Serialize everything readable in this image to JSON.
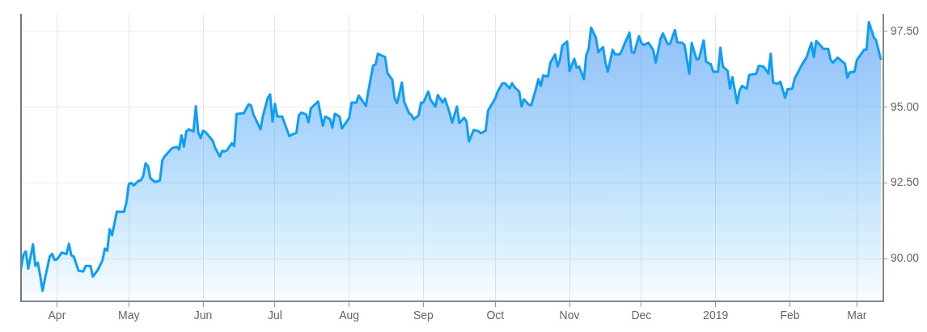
{
  "chart_data": {
    "type": "area",
    "color": "#0f9ef5",
    "grid": true,
    "xlim": [
      "2018-03-17",
      "2019-03-12"
    ],
    "xticks": [
      {
        "value": "2018-04-01",
        "label": "Apr"
      },
      {
        "value": "2018-05-01",
        "label": "May"
      },
      {
        "value": "2018-06-01",
        "label": "Jun"
      },
      {
        "value": "2018-07-01",
        "label": "Jul"
      },
      {
        "value": "2018-08-01",
        "label": "Aug"
      },
      {
        "value": "2018-09-01",
        "label": "Sep"
      },
      {
        "value": "2018-10-01",
        "label": "Oct"
      },
      {
        "value": "2018-11-01",
        "label": "Nov"
      },
      {
        "value": "2018-12-01",
        "label": "Dec"
      },
      {
        "value": "2019-01-01",
        "label": "2019"
      },
      {
        "value": "2019-02-01",
        "label": "Feb"
      },
      {
        "value": "2019-03-01",
        "label": "Mar"
      }
    ],
    "ylim": [
      88.6,
      98.05
    ],
    "yticks": [
      {
        "value": 90,
        "label": "90.00"
      },
      {
        "value": 92.5,
        "label": "92.50"
      },
      {
        "value": 95,
        "label": "95.00"
      },
      {
        "value": 97.5,
        "label": "97.50"
      }
    ],
    "x": [
      "2018-03-17",
      "2018-03-18",
      "2018-03-19",
      "2018-03-20",
      "2018-03-22",
      "2018-03-23",
      "2018-03-24",
      "2018-03-25",
      "2018-03-26",
      "2018-03-27",
      "2018-03-29",
      "2018-03-30",
      "2018-03-31",
      "2018-04-01",
      "2018-04-02",
      "2018-04-03",
      "2018-04-05",
      "2018-04-06",
      "2018-04-07",
      "2018-04-08",
      "2018-04-10",
      "2018-04-12",
      "2018-04-13",
      "2018-04-15",
      "2018-04-16",
      "2018-04-18",
      "2018-04-20",
      "2018-04-21",
      "2018-04-22",
      "2018-04-23",
      "2018-04-24",
      "2018-04-26",
      "2018-04-29",
      "2018-04-30",
      "2018-05-01",
      "2018-05-02",
      "2018-05-03",
      "2018-05-05",
      "2018-05-06",
      "2018-05-07",
      "2018-05-08",
      "2018-05-09",
      "2018-05-10",
      "2018-05-12",
      "2018-05-14",
      "2018-05-15",
      "2018-05-16",
      "2018-05-17",
      "2018-05-19",
      "2018-05-21",
      "2018-05-22",
      "2018-05-23",
      "2018-05-24",
      "2018-05-25",
      "2018-05-26",
      "2018-05-28",
      "2018-05-29",
      "2018-05-30",
      "2018-05-31",
      "2018-06-01",
      "2018-06-02",
      "2018-06-05",
      "2018-06-06",
      "2018-06-08",
      "2018-06-09",
      "2018-06-10",
      "2018-06-11",
      "2018-06-13",
      "2018-06-14",
      "2018-06-15",
      "2018-06-18",
      "2018-06-20",
      "2018-06-21",
      "2018-06-22",
      "2018-06-25",
      "2018-06-26",
      "2018-06-28",
      "2018-06-29",
      "2018-06-30",
      "2018-07-01",
      "2018-07-02",
      "2018-07-04",
      "2018-07-05",
      "2018-07-07",
      "2018-07-08",
      "2018-07-10",
      "2018-07-11",
      "2018-07-12",
      "2018-07-14",
      "2018-07-15",
      "2018-07-16",
      "2018-07-18",
      "2018-07-19",
      "2018-07-21",
      "2018-07-22",
      "2018-07-24",
      "2018-07-25",
      "2018-07-26",
      "2018-07-28",
      "2018-07-29",
      "2018-08-01",
      "2018-08-02",
      "2018-08-04",
      "2018-08-05",
      "2018-08-08",
      "2018-08-09",
      "2018-08-11",
      "2018-08-12",
      "2018-08-13",
      "2018-08-16",
      "2018-08-17",
      "2018-08-19",
      "2018-08-20",
      "2018-08-21",
      "2018-08-23",
      "2018-08-24",
      "2018-08-26",
      "2018-08-27",
      "2018-08-28",
      "2018-08-30",
      "2018-08-31",
      "2018-09-01",
      "2018-09-03",
      "2018-09-04",
      "2018-09-06",
      "2018-09-07",
      "2018-09-09",
      "2018-09-10",
      "2018-09-12",
      "2018-09-13",
      "2018-09-15",
      "2018-09-16",
      "2018-09-18",
      "2018-09-19",
      "2018-09-20",
      "2018-09-22",
      "2018-09-24",
      "2018-09-25",
      "2018-09-27",
      "2018-09-28",
      "2018-09-30",
      "2018-10-01",
      "2018-10-02",
      "2018-10-04",
      "2018-10-05",
      "2018-10-07",
      "2018-10-08",
      "2018-10-09",
      "2018-10-11",
      "2018-10-12",
      "2018-10-13",
      "2018-10-15",
      "2018-10-16",
      "2018-10-18",
      "2018-10-19",
      "2018-10-20",
      "2018-10-21",
      "2018-10-23",
      "2018-10-24",
      "2018-10-26",
      "2018-10-27",
      "2018-10-28",
      "2018-10-29",
      "2018-10-31",
      "2018-11-01",
      "2018-11-03",
      "2018-11-04",
      "2018-11-05",
      "2018-11-07",
      "2018-11-08",
      "2018-11-09",
      "2018-11-10",
      "2018-11-12",
      "2018-11-13",
      "2018-11-15",
      "2018-11-16",
      "2018-11-17",
      "2018-11-19",
      "2018-11-20",
      "2018-11-22",
      "2018-11-23",
      "2018-11-24",
      "2018-11-26",
      "2018-11-27",
      "2018-11-28",
      "2018-11-30",
      "2018-12-01",
      "2018-12-02",
      "2018-12-04",
      "2018-12-06",
      "2018-12-07",
      "2018-12-09",
      "2018-12-10",
      "2018-12-12",
      "2018-12-13",
      "2018-12-15",
      "2018-12-16",
      "2018-12-18",
      "2018-12-19",
      "2018-12-21",
      "2018-12-22",
      "2018-12-24",
      "2018-12-25",
      "2018-12-27",
      "2018-12-28",
      "2018-12-30",
      "2018-12-31",
      "2019-01-02",
      "2019-01-03",
      "2019-01-04",
      "2019-01-06",
      "2019-01-07",
      "2019-01-08",
      "2019-01-10",
      "2019-01-11",
      "2019-01-12",
      "2019-01-14",
      "2019-01-15",
      "2019-01-18",
      "2019-01-19",
      "2019-01-21",
      "2019-01-23",
      "2019-01-24",
      "2019-01-25",
      "2019-01-27",
      "2019-01-28",
      "2019-01-30",
      "2019-01-31",
      "2019-02-02",
      "2019-02-03",
      "2019-02-06",
      "2019-02-08",
      "2019-02-10",
      "2019-02-11",
      "2019-02-12",
      "2019-02-14",
      "2019-02-15",
      "2019-02-17",
      "2019-02-18",
      "2019-02-19",
      "2019-02-21",
      "2019-02-24",
      "2019-02-25",
      "2019-02-26",
      "2019-02-28",
      "2019-03-01",
      "2019-03-04",
      "2019-03-05",
      "2019-03-06",
      "2019-03-08",
      "2019-03-09",
      "2019-03-11"
    ],
    "values": [
      89.68,
      90.14,
      90.25,
      89.68,
      90.48,
      89.77,
      89.88,
      89.45,
      88.95,
      89.36,
      90.08,
      90.17,
      89.97,
      89.99,
      90.09,
      90.21,
      90.16,
      90.5,
      90.12,
      90.08,
      89.61,
      89.59,
      89.77,
      89.77,
      89.42,
      89.63,
      89.95,
      90.34,
      90.27,
      90.98,
      90.78,
      91.56,
      91.55,
      91.86,
      92.47,
      92.51,
      92.42,
      92.57,
      92.59,
      92.73,
      93.15,
      93.06,
      92.66,
      92.53,
      92.59,
      93.25,
      93.38,
      93.47,
      93.65,
      93.69,
      93.61,
      94.07,
      93.7,
      94.2,
      94.27,
      94.2,
      95.03,
      94.16,
      93.98,
      94.22,
      94.18,
      93.9,
      93.67,
      93.37,
      93.56,
      93.54,
      93.58,
      93.81,
      93.72,
      94.78,
      94.8,
      95.09,
      95.06,
      94.76,
      94.27,
      94.71,
      95.3,
      95.42,
      94.53,
      95.11,
      94.69,
      94.69,
      94.48,
      94.05,
      94.09,
      94.16,
      94.73,
      94.82,
      94.76,
      94.5,
      94.96,
      95.11,
      95.19,
      94.39,
      94.69,
      94.61,
      94.32,
      94.78,
      94.69,
      94.3,
      94.64,
      95.15,
      95.15,
      95.38,
      95.04,
      95.53,
      96.37,
      96.4,
      96.76,
      96.65,
      96.12,
      95.9,
      95.28,
      95.13,
      95.81,
      95.17,
      94.8,
      94.74,
      94.6,
      94.73,
      95.15,
      95.15,
      95.51,
      95.24,
      95.02,
      95.4,
      95.15,
      95.28,
      94.8,
      94.49,
      95.02,
      94.48,
      94.65,
      94.53,
      93.87,
      94.25,
      94.21,
      94.14,
      94.23,
      94.89,
      95.15,
      95.29,
      95.51,
      95.79,
      95.79,
      95.62,
      95.79,
      95.66,
      95.51,
      95.02,
      95.26,
      95.08,
      95.06,
      95.61,
      95.92,
      95.7,
      96.04,
      96.01,
      96.47,
      96.74,
      96.34,
      96.56,
      97.03,
      97.16,
      96.19,
      96.59,
      96.3,
      96.34,
      95.92,
      96.72,
      96.92,
      97.62,
      97.29,
      96.81,
      96.98,
      96.47,
      96.17,
      96.89,
      96.74,
      96.74,
      96.89,
      97.09,
      97.45,
      96.81,
      96.79,
      97.34,
      97.12,
      97.05,
      97.12,
      96.87,
      96.47,
      97.25,
      97.43,
      97.07,
      97.09,
      97.54,
      97.13,
      97.12,
      97.05,
      96.1,
      97.11,
      96.58,
      96.58,
      97.2,
      96.5,
      96.41,
      96.17,
      96.17,
      96.96,
      96.34,
      96.19,
      95.61,
      95.99,
      95.13,
      95.55,
      95.7,
      95.61,
      96.06,
      96.1,
      96.36,
      96.34,
      96.1,
      96.76,
      95.81,
      95.77,
      95.84,
      95.31,
      95.59,
      95.61,
      95.94,
      96.39,
      96.65,
      97.12,
      96.65,
      97.18,
      97.01,
      96.92,
      96.92,
      96.56,
      96.47,
      96.63,
      96.43,
      95.97,
      96.15,
      96.17,
      96.56,
      96.89,
      96.89,
      97.8,
      97.31,
      97.2,
      96.56
    ]
  }
}
